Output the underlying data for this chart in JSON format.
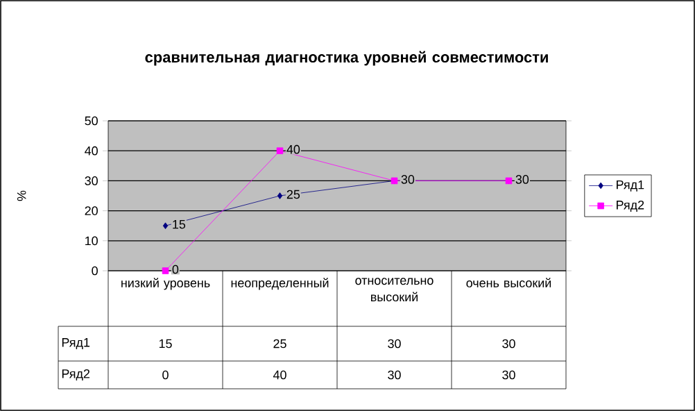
{
  "chart_data": {
    "type": "line",
    "title": "сравнительная диагностика уровней совместимости",
    "ylabel": "%",
    "categories": [
      "низкий уровень",
      "неопределенный",
      "относительно высокий",
      "очень высокий"
    ],
    "series": [
      {
        "name": "Ряд1",
        "color": "#000080",
        "marker": "diamond",
        "values": [
          15,
          25,
          30,
          30
        ],
        "value_labels": [
          "15",
          "25",
          "30",
          "30"
        ]
      },
      {
        "name": "Ряд2",
        "color": "#ff00ff",
        "marker": "square",
        "values": [
          0,
          40,
          30,
          30
        ],
        "value_labels": [
          "0",
          "40",
          "30",
          "30"
        ]
      }
    ],
    "ylim": [
      0,
      50
    ],
    "yticks": [
      0,
      10,
      20,
      30,
      40,
      50
    ],
    "grid": "y",
    "legend": "right"
  }
}
